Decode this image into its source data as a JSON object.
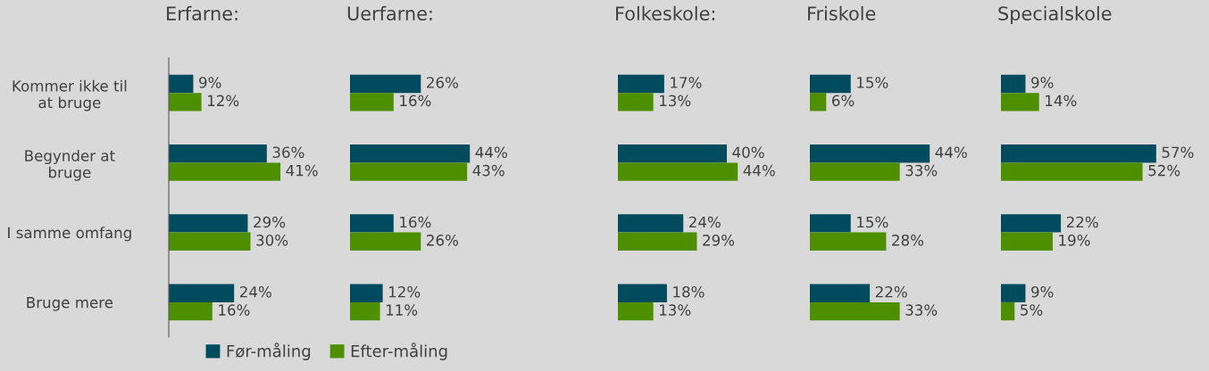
{
  "chart_data": [
    {
      "type": "bar",
      "orientation": "horizontal",
      "title": "Erfarne:",
      "categories": [
        "Kommer ikke til\nat bruge",
        "Begynder at\nbruge",
        "I samme omfang",
        "Bruge mere"
      ],
      "tick_labels": "y",
      "legend": "bottom",
      "series": [
        {
          "name": "Før-måling",
          "color": "#004b5e",
          "values": [
            9,
            36,
            29,
            24
          ],
          "value_labels": [
            "9%",
            "36%",
            "29%",
            "24%"
          ]
        },
        {
          "name": "Efter-måling",
          "color": "#4e8f00",
          "values": [
            12,
            41,
            30,
            16
          ],
          "value_labels": [
            "12%",
            "41%",
            "30%",
            "16%"
          ]
        }
      ]
    },
    {
      "type": "bar",
      "orientation": "horizontal",
      "title": "Uerfarne:",
      "tick_labels": false,
      "series": [
        {
          "color": "#004b5e",
          "values": [
            26,
            44,
            16,
            12
          ],
          "value_labels": [
            "26%",
            "44%",
            "16%",
            "12%"
          ]
        },
        {
          "color": "#4e8f00",
          "values": [
            16,
            43,
            26,
            11
          ],
          "value_labels": [
            "16%",
            "43%",
            "26%",
            "11%"
          ]
        }
      ]
    },
    {
      "type": "bar",
      "orientation": "horizontal",
      "title": "Folkeskole:",
      "tick_labels": false,
      "series": [
        {
          "color": "#004b5e",
          "values": [
            17,
            40,
            24,
            18
          ],
          "value_labels": [
            "17%",
            "40%",
            "24%",
            "18%"
          ]
        },
        {
          "color": "#4e8f00",
          "values": [
            13,
            44,
            29,
            13
          ],
          "value_labels": [
            "13%",
            "44%",
            "29%",
            "13%"
          ]
        }
      ]
    },
    {
      "type": "bar",
      "orientation": "horizontal",
      "title": "Friskole",
      "tick_labels": false,
      "series": [
        {
          "color": "#004b5e",
          "values": [
            15,
            44,
            15,
            22
          ],
          "value_labels": [
            "15%",
            "44%",
            "15%",
            "22%"
          ]
        },
        {
          "color": "#4e8f00",
          "values": [
            6,
            33,
            28,
            33
          ],
          "value_labels": [
            "6%",
            "33%",
            "28%",
            "33%"
          ]
        }
      ]
    },
    {
      "type": "bar",
      "orientation": "horizontal",
      "title": "Specialskole",
      "tick_labels": false,
      "series": [
        {
          "color": "#004b5e",
          "values": [
            9,
            57,
            22,
            9
          ],
          "value_labels": [
            "9%",
            "57%",
            "22%",
            "9%"
          ]
        },
        {
          "color": "#4e8f00",
          "values": [
            14,
            52,
            19,
            5
          ],
          "value_labels": [
            "14%",
            "52%",
            "19%",
            "5%"
          ]
        }
      ]
    }
  ]
}
